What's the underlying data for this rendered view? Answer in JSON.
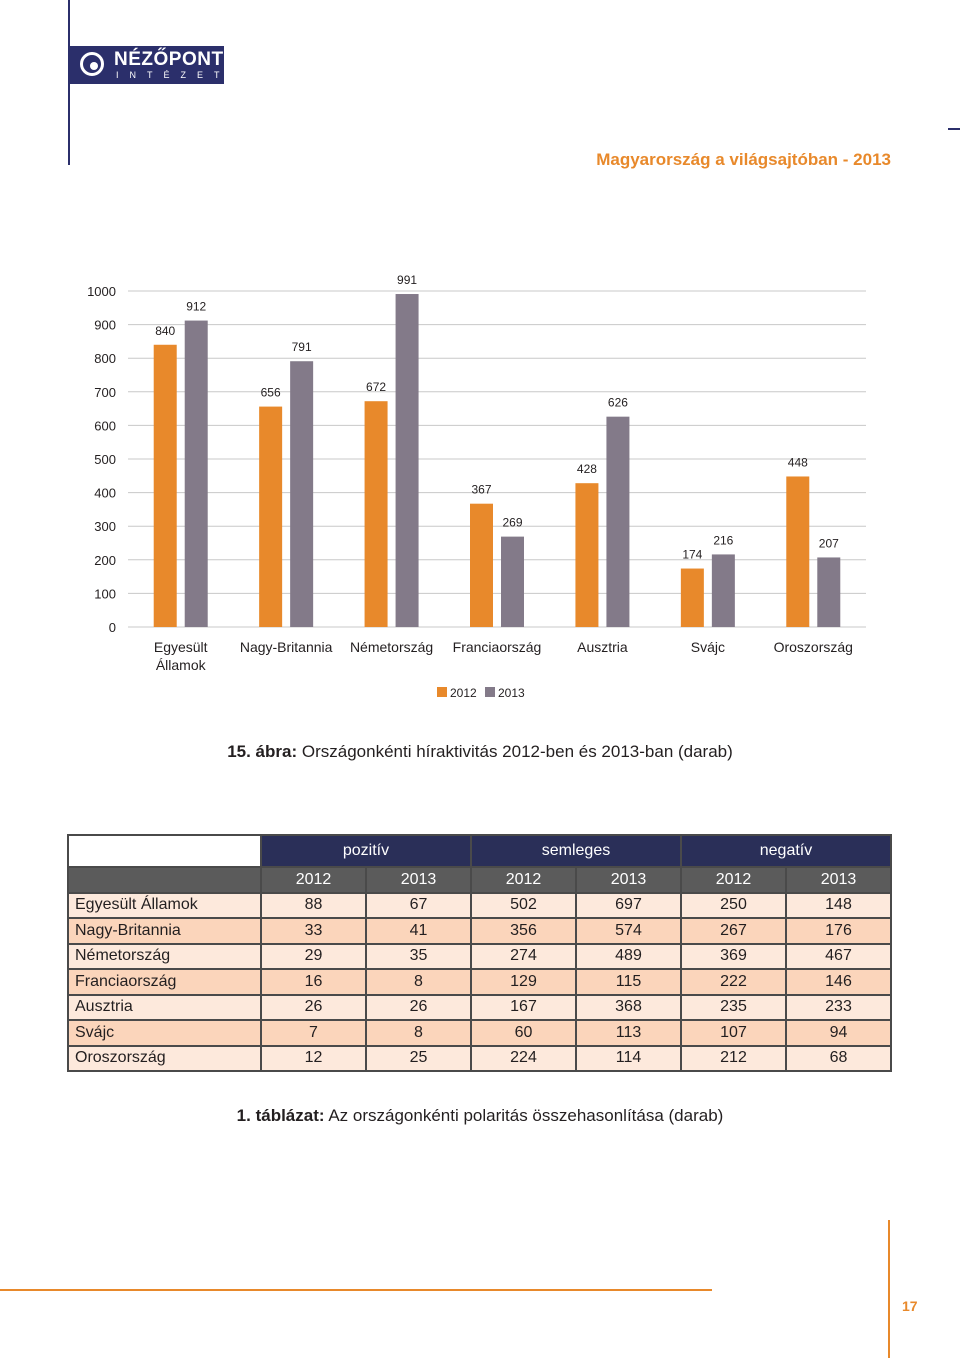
{
  "header": {
    "logo_main": "NÉZŐPONT",
    "logo_sub": "INTÉZET",
    "title": "Magyarország a világsajtóban - 2013"
  },
  "chart_caption": {
    "label": "15. ábra:",
    "text": "Országonkénti híraktivitás 2012-ben és 2013-ban (darab)"
  },
  "chart_data": {
    "type": "bar",
    "categories": [
      [
        "Egyesült",
        "Államok"
      ],
      [
        "Nagy-Britannia"
      ],
      [
        "Németország"
      ],
      [
        "Franciaország"
      ],
      [
        "Ausztria"
      ],
      [
        "Svájc"
      ],
      [
        "Oroszország"
      ]
    ],
    "series": [
      {
        "name": "2012",
        "color": "#e8892b",
        "values": [
          840,
          656,
          672,
          367,
          428,
          174,
          448
        ]
      },
      {
        "name": "2013",
        "color": "#837a89",
        "values": [
          912,
          791,
          991,
          269,
          626,
          216,
          207
        ]
      }
    ],
    "ylim": [
      0,
      1000
    ],
    "yticks": [
      0,
      100,
      200,
      300,
      400,
      500,
      600,
      700,
      800,
      900,
      1000
    ],
    "grid": true,
    "legend": "bottom-center"
  },
  "table": {
    "groups": [
      "pozitív",
      "semleges",
      "negatív"
    ],
    "years": [
      "2012",
      "2013",
      "2012",
      "2013",
      "2012",
      "2013"
    ],
    "rows": [
      {
        "country": "Egyesült Államok",
        "values": [
          "88",
          "67",
          "502",
          "697",
          "250",
          "148"
        ]
      },
      {
        "country": "Nagy-Britannia",
        "values": [
          "33",
          "41",
          "356",
          "574",
          "267",
          "176"
        ]
      },
      {
        "country": "Németország",
        "values": [
          "29",
          "35",
          "274",
          "489",
          "369",
          "467"
        ]
      },
      {
        "country": "Franciaország",
        "values": [
          "16",
          "8",
          "129",
          "115",
          "222",
          "146"
        ]
      },
      {
        "country": "Ausztria",
        "values": [
          "26",
          "26",
          "167",
          "368",
          "235",
          "233"
        ]
      },
      {
        "country": "Svájc",
        "values": [
          "7",
          "8",
          "60",
          "113",
          "107",
          "94"
        ]
      },
      {
        "country": "Oroszország",
        "values": [
          "12",
          "25",
          "224",
          "114",
          "212",
          "68"
        ]
      }
    ]
  },
  "table_caption": {
    "label": "1. táblázat:",
    "text": "Az országonkénti polaritás összehasonlítása (darab)"
  },
  "page_number": "17"
}
